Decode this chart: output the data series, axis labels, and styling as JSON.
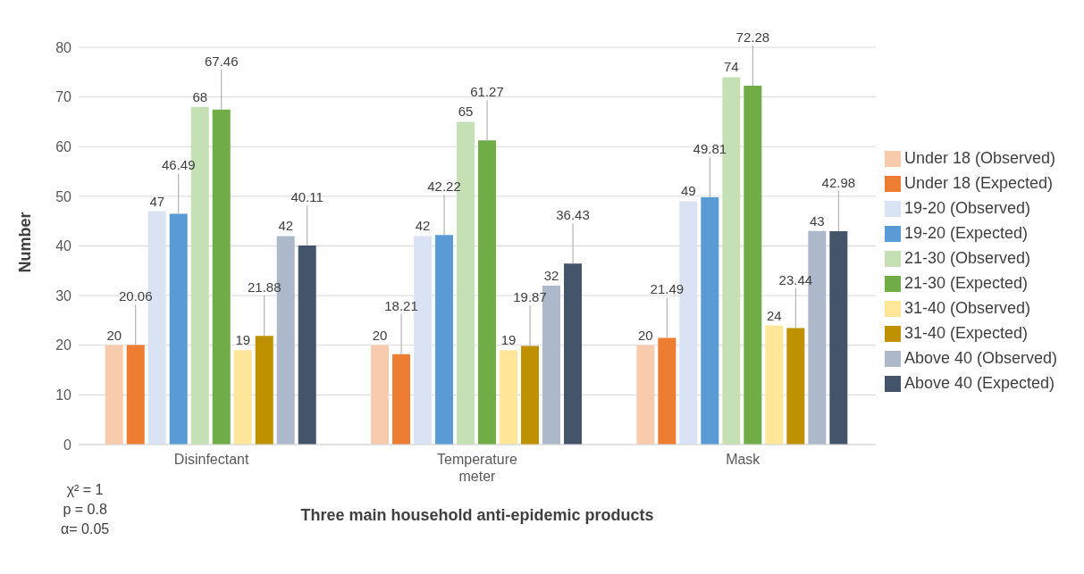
{
  "chart_data": {
    "type": "bar",
    "xlabel": "Three main household anti-epidemic products",
    "ylabel": "Number",
    "categories": [
      "Disinfectant",
      "Temperature meter",
      "Mask"
    ],
    "series": [
      {
        "name": "Under 18 (Observed)",
        "color": "#f8cbad",
        "values": [
          20,
          20,
          20
        ]
      },
      {
        "name": "Under 18 (Expected)",
        "color": "#ed7d31",
        "values": [
          20.06,
          18.21,
          21.49
        ]
      },
      {
        "name": "19-20 (Observed)",
        "color": "#dae3f3",
        "values": [
          47,
          42,
          49
        ]
      },
      {
        "name": "19-20 (Expected)",
        "color": "#5b9bd5",
        "values": [
          46.49,
          42.22,
          49.81
        ]
      },
      {
        "name": "21-30 (Observed)",
        "color": "#c5e0b4",
        "values": [
          68,
          65,
          74
        ]
      },
      {
        "name": "21-30 (Expected)",
        "color": "#70ad47",
        "values": [
          67.46,
          61.27,
          72.28
        ]
      },
      {
        "name": "31-40 (Observed)",
        "color": "#ffe699",
        "values": [
          19,
          19,
          24
        ]
      },
      {
        "name": "31-40 (Expected)",
        "color": "#bf9000",
        "values": [
          21.88,
          19.87,
          23.44
        ]
      },
      {
        "name": "Above 40 (Observed)",
        "color": "#adb9ca",
        "values": [
          42,
          32,
          43
        ]
      },
      {
        "name": "Above 40 (Expected)",
        "color": "#44546a",
        "values": [
          40.11,
          36.43,
          42.98
        ]
      }
    ],
    "ylim": [
      0,
      80
    ],
    "yticks": [
      0,
      10,
      20,
      30,
      40,
      50,
      60,
      70,
      80
    ],
    "grid": "y",
    "legend": "right",
    "data_labels": true,
    "annotations": [
      "χ² = 1",
      "p = 0.8",
      "α= 0.05"
    ]
  }
}
